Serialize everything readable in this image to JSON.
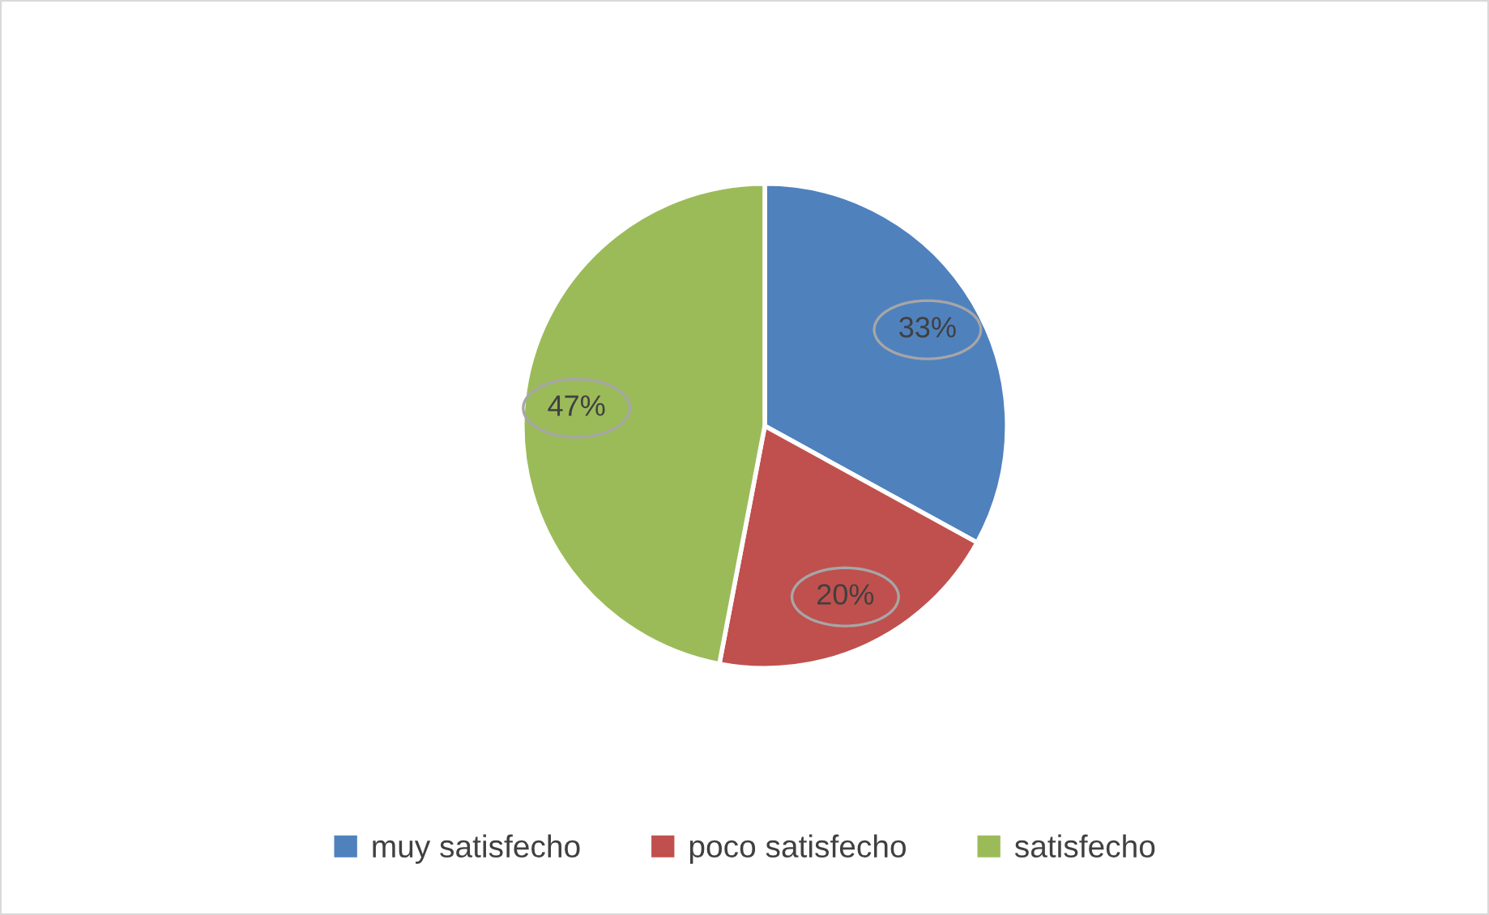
{
  "chart_data": {
    "type": "pie",
    "categories": [
      "muy satisfecho",
      "poco satisfecho",
      "satisfecho"
    ],
    "values": [
      33,
      20,
      47
    ],
    "colors": [
      "#4f81bd",
      "#c0504d",
      "#9bbb59"
    ],
    "value_labels": [
      "33%",
      "20%",
      "47%"
    ],
    "legend": "bottom"
  }
}
